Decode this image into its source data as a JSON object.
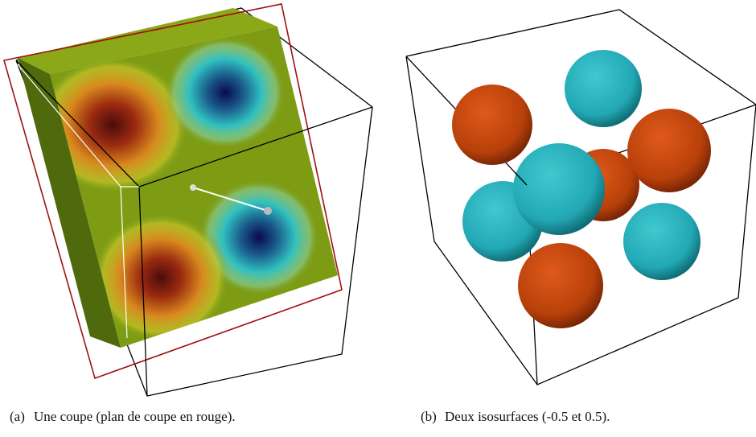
{
  "figures": [
    {
      "label": "(a)",
      "caption": "Une coupe (plan de coupe en rouge)."
    },
    {
      "label": "(b)",
      "caption": "Deux isosurfaces (-0.5 et 0.5)."
    }
  ]
}
